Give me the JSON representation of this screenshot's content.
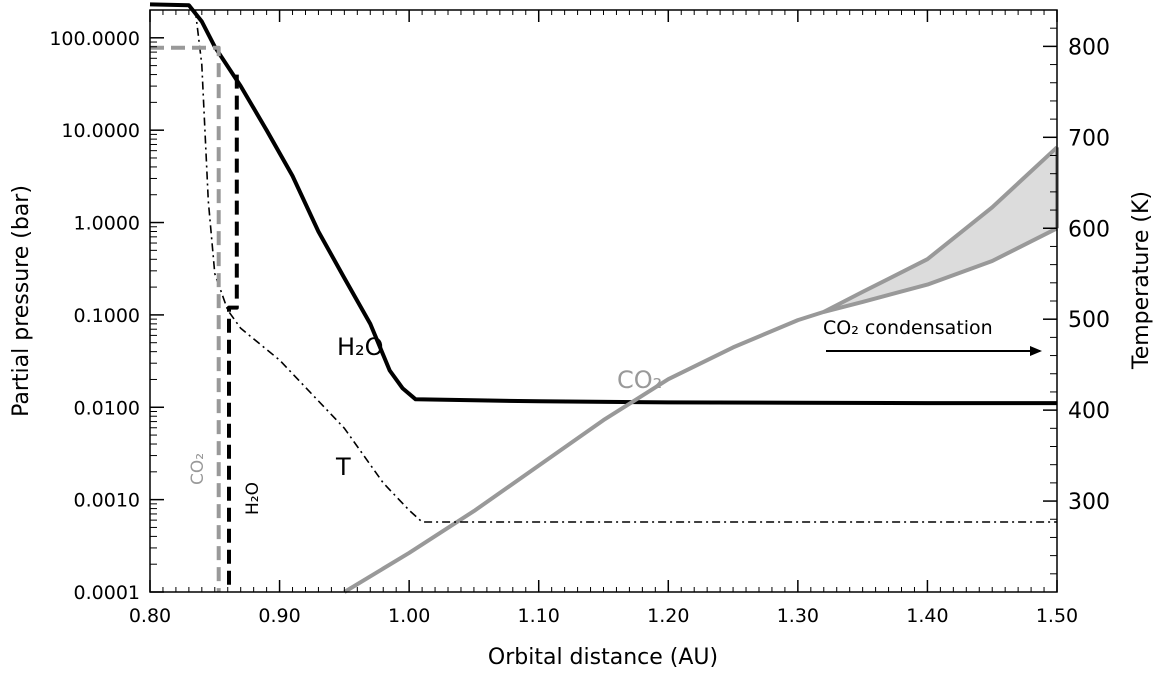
{
  "chart_data": {
    "type": "line",
    "xlabel": "Orbital distance (AU)",
    "ylabel_left": "Partial pressure (bar)",
    "ylabel_right": "Temperature (K)",
    "xlim": [
      0.8,
      1.5
    ],
    "ylim_left": [
      0.0001,
      200
    ],
    "ylim_right": [
      200,
      840
    ],
    "yscale_left": "log",
    "yscale_right": "linear",
    "grid": false,
    "x_ticks": [
      0.8,
      0.9,
      1.0,
      1.1,
      1.2,
      1.3,
      1.4,
      1.5
    ],
    "x_tick_labels": [
      "0.80",
      "0.90",
      "1.00",
      "1.10",
      "1.20",
      "1.30",
      "1.40",
      "1.50"
    ],
    "y_left_ticks": [
      0.0001,
      0.001,
      0.01,
      0.1,
      1,
      10,
      100
    ],
    "y_left_tick_labels": [
      "0.0001",
      "0.0010",
      "0.0100",
      "0.1000",
      "1.0000",
      "10.0000",
      "100.0000"
    ],
    "y_right_ticks": [
      300,
      400,
      500,
      600,
      700,
      800
    ],
    "y_right_tick_labels": [
      "300",
      "400",
      "500",
      "600",
      "700",
      "800"
    ],
    "series": [
      {
        "name": "H2O",
        "axis": "left",
        "color": "#000000",
        "style": "solid",
        "x": [
          0.8,
          0.83,
          0.84,
          0.85,
          0.87,
          0.89,
          0.91,
          0.93,
          0.95,
          0.97,
          0.985,
          0.995,
          1.005,
          1.05,
          1.1,
          1.2,
          1.3,
          1.4,
          1.5
        ],
        "y": [
          230,
          225,
          150,
          80,
          30,
          10,
          3.2,
          0.8,
          0.25,
          0.08,
          0.025,
          0.016,
          0.0122,
          0.0119,
          0.0116,
          0.0113,
          0.0112,
          0.0111,
          0.0111
        ]
      },
      {
        "name": "CO2",
        "axis": "right",
        "color": "#999999",
        "style": "solid",
        "x": [
          0.95,
          1.0,
          1.05,
          1.1,
          1.15,
          1.2,
          1.25,
          1.3,
          1.32,
          1.35,
          1.4,
          1.45,
          1.5
        ],
        "y": [
          200,
          243,
          289,
          339,
          389,
          434,
          469,
          499,
          508,
          519,
          538,
          564,
          600
        ]
      },
      {
        "name": "CO2 condensation upper bound",
        "axis": "right",
        "color": "#999999",
        "style": "solid",
        "x": [
          1.32,
          1.35,
          1.4,
          1.45,
          1.5
        ],
        "y": [
          508,
          530,
          566,
          623,
          689
        ]
      },
      {
        "name": "T",
        "axis": "right",
        "color": "#000000",
        "style": "dash-dot",
        "x": [
          0.835,
          0.84,
          0.845,
          0.85,
          0.86,
          0.87,
          0.9,
          0.95,
          0.98,
          1.0,
          1.01,
          1.05,
          1.1,
          1.2,
          1.3,
          1.4,
          1.5
        ],
        "y": [
          840,
          780,
          630,
          550,
          510,
          490,
          455,
          380,
          320,
          290,
          277,
          277,
          277,
          277,
          277,
          277,
          277
        ]
      },
      {
        "name": "CO2 partial pressure (vertical)",
        "axis": "left",
        "color": "#999999",
        "style": "dashed",
        "x": [
          0.8,
          0.853,
          0.853
        ],
        "y": [
          78,
          78,
          0.0001
        ]
      },
      {
        "name": "H2O partial pressure (vertical)",
        "axis": "left",
        "color": "#000000",
        "style": "dashed",
        "x": [
          0.867,
          0.867,
          0.861,
          0.861
        ],
        "y": [
          40,
          0.12,
          0.12,
          0.0001
        ]
      }
    ],
    "shaded_region": {
      "color": "#dcdcdc",
      "x": [
        1.32,
        1.35,
        1.4,
        1.45,
        1.5
      ],
      "y_lower": [
        508,
        519,
        538,
        564,
        600
      ],
      "y_upper": [
        508,
        530,
        566,
        623,
        689
      ]
    },
    "annotations": {
      "h2o_curve": "H₂O",
      "co2_curve": "CO₂",
      "t_curve": "T",
      "co2_vertical": "CO₂",
      "h2o_vertical": "H₂O",
      "condensation": "CO₂ condensation"
    },
    "colors": {
      "black": "#000000",
      "gray": "#999999",
      "shade": "#dcdcdc"
    }
  }
}
